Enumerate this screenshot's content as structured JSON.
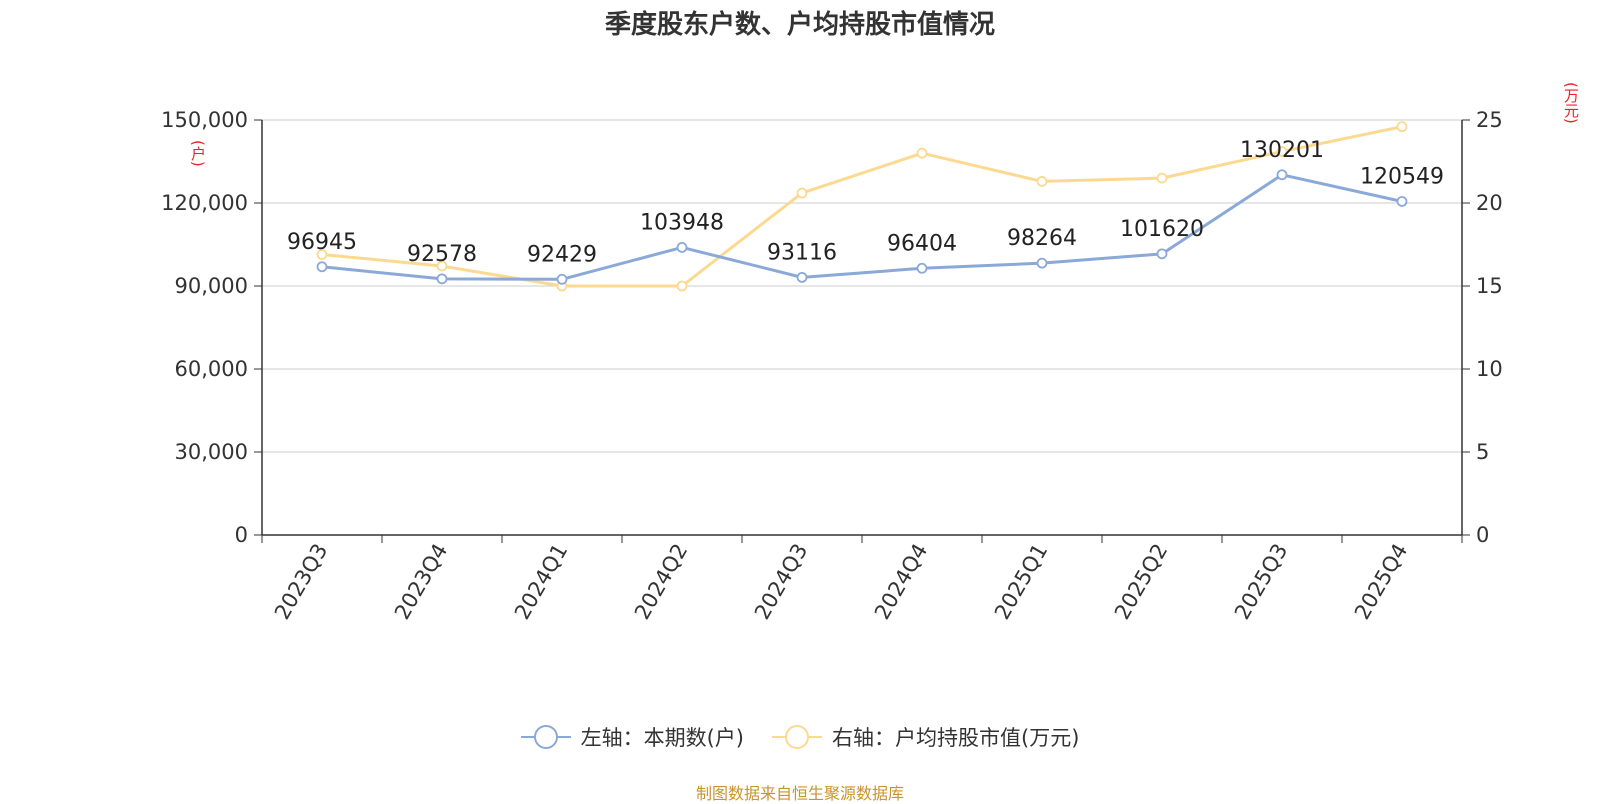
{
  "title": "季度股东户数、户均持股市值情况",
  "left_unit": "(户)",
  "right_unit": "(万元)",
  "source": "制图数据来自恒生聚源数据库",
  "colors": {
    "series_left": "#8aa8d8",
    "series_right": "#fcd991",
    "unit": "#ee2222",
    "source": "#c8952a"
  },
  "legend": {
    "left_label": "左轴：本期数(户)",
    "right_label": "右轴：户均持股市值(万元)"
  },
  "chart_data": {
    "type": "line",
    "categories": [
      "2023Q3",
      "2023Q4",
      "2024Q1",
      "2024Q2",
      "2024Q3",
      "2024Q4",
      "2025Q1",
      "2025Q2",
      "2025Q3",
      "2025Q4"
    ],
    "series": [
      {
        "name": "左轴：本期数(户)",
        "axis": "left",
        "values": [
          96945,
          92578,
          92429,
          103948,
          93116,
          96404,
          98264,
          101620,
          130201,
          120549
        ],
        "data_labels": [
          "96945",
          "92578",
          "92429",
          "103948",
          "93116",
          "96404",
          "98264",
          "101620",
          "130201",
          "120549"
        ]
      },
      {
        "name": "右轴：户均持股市值(万元)",
        "axis": "right",
        "values": [
          16.9,
          16.2,
          15.0,
          15.0,
          20.6,
          23.0,
          21.3,
          21.5,
          23.1,
          24.6
        ]
      }
    ],
    "left_axis": {
      "ylim": [
        0,
        150000
      ],
      "ticks": [
        "0",
        "30,000",
        "60,000",
        "90,000",
        "120,000",
        "150,000"
      ]
    },
    "right_axis": {
      "ylim": [
        0,
        25
      ],
      "ticks": [
        "0",
        "5",
        "10",
        "15",
        "20",
        "25"
      ]
    },
    "grid": true,
    "legend_position": "bottom"
  }
}
